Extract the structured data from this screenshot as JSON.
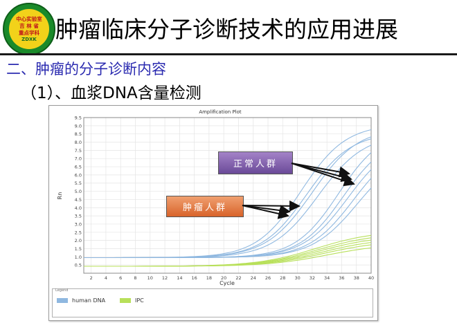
{
  "logo": {
    "line1": "中心实验室",
    "line2": "吉 林 省",
    "line3": "重点学科",
    "en": "ZDXK"
  },
  "title": "肿瘤临床分子诊断技术的应用进展",
  "subtitle": "二、肿瘤的分子诊断内容",
  "item": "（1）、血浆DNA含量检测",
  "callouts": {
    "normal": "正常人群",
    "tumor": "肿瘤人群"
  },
  "chart_data": {
    "type": "line",
    "title": "Amplification Plot",
    "xlabel": "Cycle",
    "ylabel": "Rn",
    "xlim": [
      1,
      40
    ],
    "ylim": [
      0,
      9.5
    ],
    "xticks": [
      2,
      4,
      6,
      8,
      10,
      12,
      14,
      16,
      18,
      20,
      22,
      24,
      26,
      28,
      30,
      32,
      34,
      36,
      38,
      40
    ],
    "yticks": [
      0.5,
      1.0,
      1.5,
      2.0,
      2.5,
      3.0,
      3.5,
      4.0,
      4.5,
      5.0,
      5.5,
      6.0,
      6.5,
      7.0,
      7.5,
      8.0,
      8.5,
      9.0,
      9.5
    ],
    "grid": true,
    "legend_title": "Legend",
    "legend": [
      {
        "name": "human DNA",
        "color": "#8fb8e0"
      },
      {
        "name": "IPC",
        "color": "#b8e05a"
      }
    ],
    "series": [
      {
        "group": "human DNA",
        "color": "#8fb8e0",
        "base": 0.95,
        "plateau": 9.1,
        "midpoint": 30.5,
        "steepness": 0.33
      },
      {
        "group": "human DNA",
        "color": "#8fb8e0",
        "base": 0.95,
        "plateau": 8.6,
        "midpoint": 31.2,
        "steepness": 0.33
      },
      {
        "group": "human DNA",
        "color": "#8fb8e0",
        "base": 0.95,
        "plateau": 8.9,
        "midpoint": 32.0,
        "steepness": 0.32
      },
      {
        "group": "human DNA",
        "color": "#8fb8e0",
        "base": 0.95,
        "plateau": 8.5,
        "midpoint": 32.8,
        "steepness": 0.32
      },
      {
        "group": "human DNA",
        "color": "#8fb8e0",
        "base": 0.95,
        "plateau": 8.8,
        "midpoint": 35.6,
        "steepness": 0.34
      },
      {
        "group": "human DNA",
        "color": "#8fb8e0",
        "base": 0.95,
        "plateau": 8.4,
        "midpoint": 36.2,
        "steepness": 0.34
      },
      {
        "group": "human DNA",
        "color": "#8fb8e0",
        "base": 0.95,
        "plateau": 8.2,
        "midpoint": 36.8,
        "steepness": 0.33
      },
      {
        "group": "human DNA",
        "color": "#8fb8e0",
        "base": 0.95,
        "plateau": 8.0,
        "midpoint": 37.6,
        "steepness": 0.33
      },
      {
        "group": "human DNA",
        "color": "#8fb8e0",
        "base": 0.95,
        "plateau": 7.6,
        "midpoint": 38.2,
        "steepness": 0.32
      },
      {
        "group": "IPC",
        "color": "#b8e05a",
        "base": 0.42,
        "plateau": 2.6,
        "midpoint": 32.5,
        "steepness": 0.25
      },
      {
        "group": "IPC",
        "color": "#b8e05a",
        "base": 0.42,
        "plateau": 2.45,
        "midpoint": 32.8,
        "steepness": 0.25
      },
      {
        "group": "IPC",
        "color": "#b8e05a",
        "base": 0.42,
        "plateau": 2.3,
        "midpoint": 33.0,
        "steepness": 0.25
      },
      {
        "group": "IPC",
        "color": "#b8e05a",
        "base": 0.42,
        "plateau": 2.15,
        "midpoint": 33.3,
        "steepness": 0.25
      },
      {
        "group": "IPC",
        "color": "#b8e05a",
        "base": 0.42,
        "plateau": 2.0,
        "midpoint": 33.6,
        "steepness": 0.25
      },
      {
        "group": "IPC",
        "color": "#b8e05a",
        "base": 0.42,
        "plateau": 1.8,
        "midpoint": 34.0,
        "steepness": 0.25
      }
    ]
  }
}
